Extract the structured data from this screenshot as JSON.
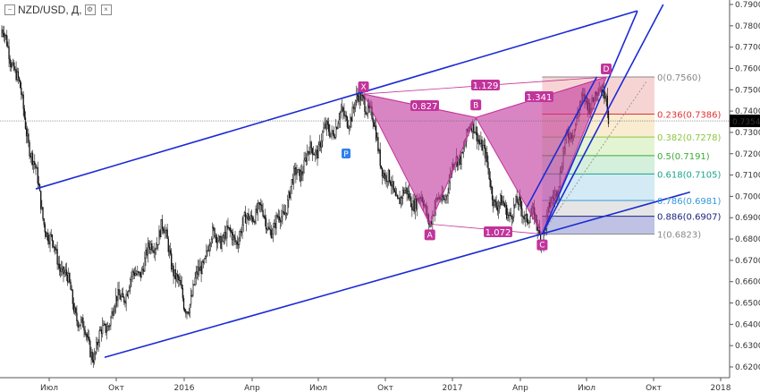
{
  "header": {
    "symbol": "NZD/USD",
    "sep": ",",
    "interval": "Д,",
    "icons": [
      "minus-icon",
      "settings-icon",
      "close-icon"
    ]
  },
  "chart_data": {
    "type": "candlestick",
    "title": "NZD/USD, Д,",
    "ylim": [
      0.6175,
      0.795
    ],
    "y_ticks": [
      "0.6200",
      "0.6300",
      "0.6400",
      "0.6500",
      "0.6600",
      "0.6700",
      "0.6800",
      "0.6900",
      "0.7000",
      "0.7100",
      "0.7200",
      "0.7300",
      "0.7400",
      "0.7500",
      "0.7600",
      "0.7700",
      "0.7800",
      "0.7900"
    ],
    "x_ticks": [
      "Июл",
      "Окт",
      "2016",
      "Апр",
      "Июл",
      "Окт",
      "2017",
      "Апр",
      "Июл",
      "Окт",
      "2018"
    ],
    "current_price": "0.7354",
    "price_path": [
      [
        "2015-03",
        0.775
      ],
      [
        "2015-04",
        0.758
      ],
      [
        "2015-05",
        0.735
      ],
      [
        "2015-06",
        0.71
      ],
      [
        "2015-07",
        0.68
      ],
      [
        "2015-08",
        0.65
      ],
      [
        "2015-09",
        0.63
      ],
      [
        "2015-10",
        0.645
      ],
      [
        "2015-11",
        0.67
      ],
      [
        "2015-12",
        0.682
      ],
      [
        "2016-01",
        0.65
      ],
      [
        "2016-02",
        0.675
      ],
      [
        "2016-03",
        0.68
      ],
      [
        "2016-04",
        0.695
      ],
      [
        "2016-05",
        0.68
      ],
      [
        "2016-06",
        0.715
      ],
      [
        "2016-07",
        0.72
      ],
      [
        "2016-08",
        0.74
      ],
      [
        "2016-09",
        0.745
      ],
      [
        "2016-10",
        0.71
      ],
      [
        "2016-11",
        0.7
      ],
      [
        "2016-12",
        0.688
      ],
      [
        "2017-01",
        0.715
      ],
      [
        "2017-02",
        0.73
      ],
      [
        "2017-03",
        0.7
      ],
      [
        "2017-04",
        0.69
      ],
      [
        "2017-05",
        0.685
      ],
      [
        "2017-06",
        0.72
      ],
      [
        "2017-07",
        0.745
      ],
      [
        "2017-07-28",
        0.756
      ],
      [
        "2017-08",
        0.7354
      ]
    ],
    "harmonic_points": [
      {
        "label": "X",
        "date": "2016-09",
        "price": 0.748
      },
      {
        "label": "A",
        "date": "2016-12",
        "price": 0.687
      },
      {
        "label": "B",
        "date": "2017-02",
        "price": 0.737
      },
      {
        "label": "C",
        "date": "2017-05",
        "price": 0.6823
      },
      {
        "label": "D",
        "date": "2017-07-28",
        "price": 0.756
      }
    ],
    "ratios": [
      "0.827",
      "1.129",
      "1.341",
      "1.072"
    ],
    "fib_levels": [
      {
        "label": "0(0.7560)",
        "price": 0.756,
        "color": "#888888",
        "fill": "#f4c6c6"
      },
      {
        "label": "0.236(0.7386)",
        "price": 0.7386,
        "color": "#e03030",
        "fill": "#f7e6c0"
      },
      {
        "label": "0.382(0.7278)",
        "price": 0.7278,
        "color": "#8cc63f",
        "fill": "#d9f0c4"
      },
      {
        "label": "0.5(0.7191)",
        "price": 0.7191,
        "color": "#3aaa35",
        "fill": "#c6ead0"
      },
      {
        "label": "0.618(0.7105)",
        "price": 0.7105,
        "color": "#17a589",
        "fill": "#c5e3f2"
      },
      {
        "label": "0.786(0.6981)",
        "price": 0.6981,
        "color": "#3498db",
        "fill": "#dcdcdc"
      },
      {
        "label": "0.886(0.6907)",
        "price": 0.6907,
        "color": "#1a237e",
        "fill": "#a9addb"
      },
      {
        "label": "1(0.6823)",
        "price": 0.6823,
        "color": "#888888",
        "fill": "none"
      }
    ],
    "grid": false,
    "legend": "none",
    "colors": {
      "pattern": "#c2349b",
      "channel": "#1b2bd4",
      "candle": "#111111",
      "price_box": "#000000"
    }
  }
}
